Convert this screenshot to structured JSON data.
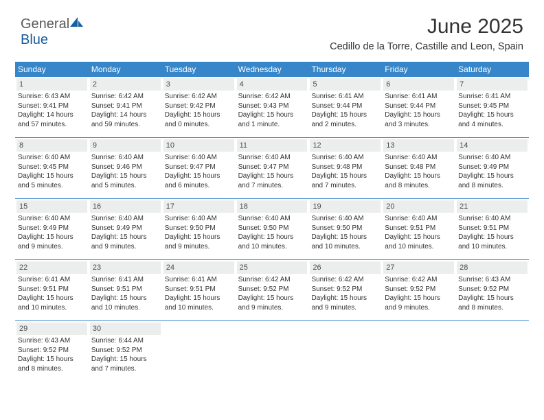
{
  "brand": {
    "part1": "General",
    "part2": "Blue"
  },
  "title": "June 2025",
  "subtitle": "Cedillo de la Torre, Castille and Leon, Spain",
  "colors": {
    "header_bg": "#3686c9",
    "header_text": "#ffffff",
    "daynum_bg": "#eceded",
    "row_border": "#3686c9",
    "body_text": "#333333",
    "logo_gray": "#5a5a5a",
    "logo_blue": "#165a9c"
  },
  "typography": {
    "title_fontsize": 30,
    "subtitle_fontsize": 14.5,
    "dayhead_fontsize": 12,
    "daynum_fontsize": 11,
    "cell_fontsize": 10
  },
  "weekdays": [
    "Sunday",
    "Monday",
    "Tuesday",
    "Wednesday",
    "Thursday",
    "Friday",
    "Saturday"
  ],
  "weeks": [
    [
      {
        "day": "1",
        "sunrise": "Sunrise: 6:43 AM",
        "sunset": "Sunset: 9:41 PM",
        "dl1": "Daylight: 14 hours",
        "dl2": "and 57 minutes."
      },
      {
        "day": "2",
        "sunrise": "Sunrise: 6:42 AM",
        "sunset": "Sunset: 9:41 PM",
        "dl1": "Daylight: 14 hours",
        "dl2": "and 59 minutes."
      },
      {
        "day": "3",
        "sunrise": "Sunrise: 6:42 AM",
        "sunset": "Sunset: 9:42 PM",
        "dl1": "Daylight: 15 hours",
        "dl2": "and 0 minutes."
      },
      {
        "day": "4",
        "sunrise": "Sunrise: 6:42 AM",
        "sunset": "Sunset: 9:43 PM",
        "dl1": "Daylight: 15 hours",
        "dl2": "and 1 minute."
      },
      {
        "day": "5",
        "sunrise": "Sunrise: 6:41 AM",
        "sunset": "Sunset: 9:44 PM",
        "dl1": "Daylight: 15 hours",
        "dl2": "and 2 minutes."
      },
      {
        "day": "6",
        "sunrise": "Sunrise: 6:41 AM",
        "sunset": "Sunset: 9:44 PM",
        "dl1": "Daylight: 15 hours",
        "dl2": "and 3 minutes."
      },
      {
        "day": "7",
        "sunrise": "Sunrise: 6:41 AM",
        "sunset": "Sunset: 9:45 PM",
        "dl1": "Daylight: 15 hours",
        "dl2": "and 4 minutes."
      }
    ],
    [
      {
        "day": "8",
        "sunrise": "Sunrise: 6:40 AM",
        "sunset": "Sunset: 9:45 PM",
        "dl1": "Daylight: 15 hours",
        "dl2": "and 5 minutes."
      },
      {
        "day": "9",
        "sunrise": "Sunrise: 6:40 AM",
        "sunset": "Sunset: 9:46 PM",
        "dl1": "Daylight: 15 hours",
        "dl2": "and 5 minutes."
      },
      {
        "day": "10",
        "sunrise": "Sunrise: 6:40 AM",
        "sunset": "Sunset: 9:47 PM",
        "dl1": "Daylight: 15 hours",
        "dl2": "and 6 minutes."
      },
      {
        "day": "11",
        "sunrise": "Sunrise: 6:40 AM",
        "sunset": "Sunset: 9:47 PM",
        "dl1": "Daylight: 15 hours",
        "dl2": "and 7 minutes."
      },
      {
        "day": "12",
        "sunrise": "Sunrise: 6:40 AM",
        "sunset": "Sunset: 9:48 PM",
        "dl1": "Daylight: 15 hours",
        "dl2": "and 7 minutes."
      },
      {
        "day": "13",
        "sunrise": "Sunrise: 6:40 AM",
        "sunset": "Sunset: 9:48 PM",
        "dl1": "Daylight: 15 hours",
        "dl2": "and 8 minutes."
      },
      {
        "day": "14",
        "sunrise": "Sunrise: 6:40 AM",
        "sunset": "Sunset: 9:49 PM",
        "dl1": "Daylight: 15 hours",
        "dl2": "and 8 minutes."
      }
    ],
    [
      {
        "day": "15",
        "sunrise": "Sunrise: 6:40 AM",
        "sunset": "Sunset: 9:49 PM",
        "dl1": "Daylight: 15 hours",
        "dl2": "and 9 minutes."
      },
      {
        "day": "16",
        "sunrise": "Sunrise: 6:40 AM",
        "sunset": "Sunset: 9:49 PM",
        "dl1": "Daylight: 15 hours",
        "dl2": "and 9 minutes."
      },
      {
        "day": "17",
        "sunrise": "Sunrise: 6:40 AM",
        "sunset": "Sunset: 9:50 PM",
        "dl1": "Daylight: 15 hours",
        "dl2": "and 9 minutes."
      },
      {
        "day": "18",
        "sunrise": "Sunrise: 6:40 AM",
        "sunset": "Sunset: 9:50 PM",
        "dl1": "Daylight: 15 hours",
        "dl2": "and 10 minutes."
      },
      {
        "day": "19",
        "sunrise": "Sunrise: 6:40 AM",
        "sunset": "Sunset: 9:50 PM",
        "dl1": "Daylight: 15 hours",
        "dl2": "and 10 minutes."
      },
      {
        "day": "20",
        "sunrise": "Sunrise: 6:40 AM",
        "sunset": "Sunset: 9:51 PM",
        "dl1": "Daylight: 15 hours",
        "dl2": "and 10 minutes."
      },
      {
        "day": "21",
        "sunrise": "Sunrise: 6:40 AM",
        "sunset": "Sunset: 9:51 PM",
        "dl1": "Daylight: 15 hours",
        "dl2": "and 10 minutes."
      }
    ],
    [
      {
        "day": "22",
        "sunrise": "Sunrise: 6:41 AM",
        "sunset": "Sunset: 9:51 PM",
        "dl1": "Daylight: 15 hours",
        "dl2": "and 10 minutes."
      },
      {
        "day": "23",
        "sunrise": "Sunrise: 6:41 AM",
        "sunset": "Sunset: 9:51 PM",
        "dl1": "Daylight: 15 hours",
        "dl2": "and 10 minutes."
      },
      {
        "day": "24",
        "sunrise": "Sunrise: 6:41 AM",
        "sunset": "Sunset: 9:51 PM",
        "dl1": "Daylight: 15 hours",
        "dl2": "and 10 minutes."
      },
      {
        "day": "25",
        "sunrise": "Sunrise: 6:42 AM",
        "sunset": "Sunset: 9:52 PM",
        "dl1": "Daylight: 15 hours",
        "dl2": "and 9 minutes."
      },
      {
        "day": "26",
        "sunrise": "Sunrise: 6:42 AM",
        "sunset": "Sunset: 9:52 PM",
        "dl1": "Daylight: 15 hours",
        "dl2": "and 9 minutes."
      },
      {
        "day": "27",
        "sunrise": "Sunrise: 6:42 AM",
        "sunset": "Sunset: 9:52 PM",
        "dl1": "Daylight: 15 hours",
        "dl2": "and 9 minutes."
      },
      {
        "day": "28",
        "sunrise": "Sunrise: 6:43 AM",
        "sunset": "Sunset: 9:52 PM",
        "dl1": "Daylight: 15 hours",
        "dl2": "and 8 minutes."
      }
    ],
    [
      {
        "day": "29",
        "sunrise": "Sunrise: 6:43 AM",
        "sunset": "Sunset: 9:52 PM",
        "dl1": "Daylight: 15 hours",
        "dl2": "and 8 minutes."
      },
      {
        "day": "30",
        "sunrise": "Sunrise: 6:44 AM",
        "sunset": "Sunset: 9:52 PM",
        "dl1": "Daylight: 15 hours",
        "dl2": "and 7 minutes."
      },
      null,
      null,
      null,
      null,
      null
    ]
  ]
}
